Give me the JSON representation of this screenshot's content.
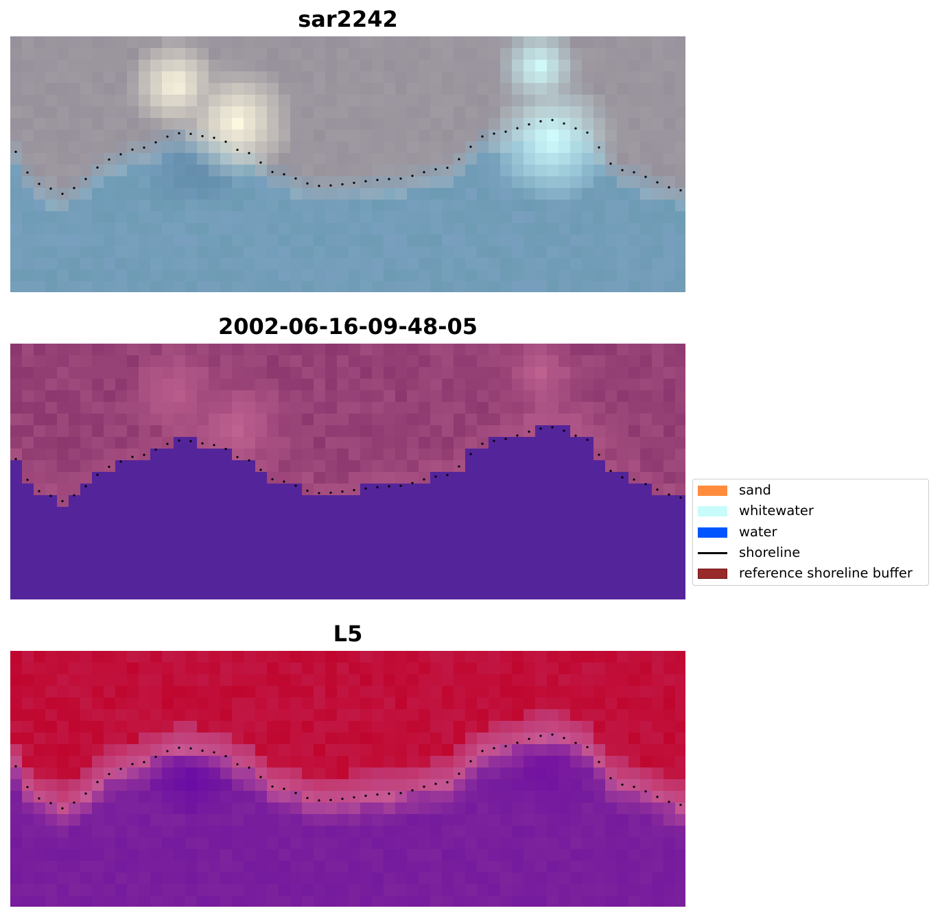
{
  "panels": [
    {
      "title": "sar2242",
      "style": "rgb"
    },
    {
      "title": "2002-06-16-09-48-05",
      "style": "classified"
    },
    {
      "title": "L5",
      "style": "index"
    }
  ],
  "legend": {
    "items": [
      {
        "label": "sand",
        "color": "#ff8c3c",
        "kind": "patch"
      },
      {
        "label": "whitewater",
        "color": "#c8fcfa",
        "kind": "patch"
      },
      {
        "label": "water",
        "color": "#0055ff",
        "kind": "patch"
      },
      {
        "label": "shoreline",
        "color": "#000000",
        "kind": "line"
      },
      {
        "label": "reference shoreline buffer",
        "color": "#992a2a",
        "kind": "patch"
      }
    ]
  },
  "colors": {
    "water_class": "#54249a",
    "buffer_tint": "#8e3a6e",
    "index_land": "#c0062e",
    "index_water": "#7d239c"
  }
}
